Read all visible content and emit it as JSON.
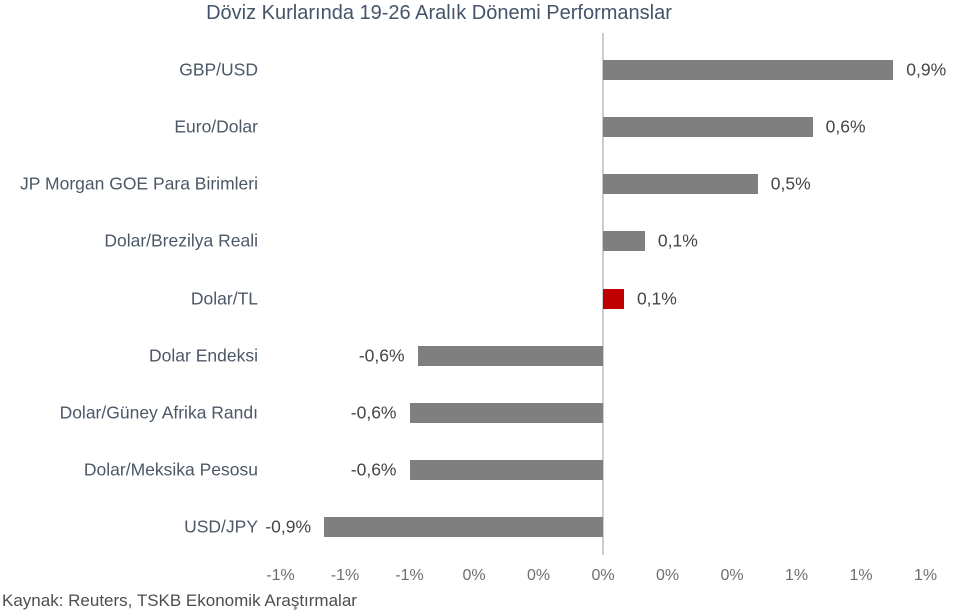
{
  "title": "Döviz Kurlarında 19-26 Aralık Dönemi Performanslar",
  "source": "Kaynak: Reuters, TSKB Ekonomik Araştırmalar",
  "chart_data": {
    "type": "bar",
    "orientation": "horizontal",
    "title": "Döviz Kurlarında 19-26 Aralık Dönemi Performanslar",
    "categories": [
      "GBP/USD",
      "Euro/Dolar",
      "JP Morgan GOE Para Birimleri",
      "Dolar/Brezilya Reali",
      "Dolar/TL",
      "Dolar Endeksi",
      "Dolar/Güney Afrika Randı",
      "Dolar/Meksika Pesosu",
      "USD/JPY"
    ],
    "values": [
      0.9,
      0.6,
      0.5,
      0.1,
      0.1,
      -0.6,
      -0.6,
      -0.6,
      -0.9
    ],
    "values_precise": [
      0.9,
      0.65,
      0.48,
      0.13,
      0.065,
      -0.575,
      -0.6,
      -0.6,
      -0.865
    ],
    "value_labels": [
      "0,9%",
      "0,6%",
      "0,5%",
      "0,1%",
      "0,1%",
      "-0,6%",
      "-0,6%",
      "-0,6%",
      "-0,9%"
    ],
    "highlight_index": 4,
    "xlim": [
      -1.0,
      1.0
    ],
    "x_tick_values": [
      -1.0,
      -0.8,
      -0.6,
      -0.4,
      -0.2,
      0.0,
      0.2,
      0.4,
      0.6,
      0.8,
      1.0
    ],
    "x_tick_labels": [
      "-1%",
      "-1%",
      "-1%",
      "0%",
      "0%",
      "0%",
      "0%",
      "0%",
      "1%",
      "1%",
      "1%"
    ],
    "grid": false,
    "legend": false,
    "colors": {
      "bar_default": "#7F7F7F",
      "bar_highlight": "#C00000",
      "axis_line": "#CDCDCD",
      "title_text": "#44546A",
      "category_text": "#4C5866",
      "value_text": "#454545",
      "tick_text": "#6E6E6E",
      "source_text": "#4D4D4D"
    }
  }
}
